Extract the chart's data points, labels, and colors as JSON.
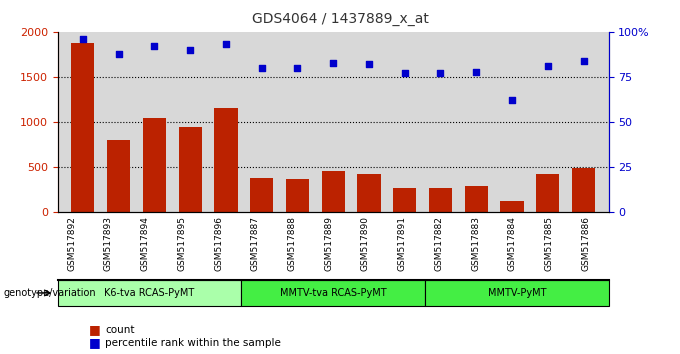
{
  "title": "GDS4064 / 1437889_x_at",
  "categories": [
    "GSM517892",
    "GSM517893",
    "GSM517894",
    "GSM517895",
    "GSM517896",
    "GSM517887",
    "GSM517888",
    "GSM517889",
    "GSM517890",
    "GSM517891",
    "GSM517882",
    "GSM517883",
    "GSM517884",
    "GSM517885",
    "GSM517886"
  ],
  "bar_values": [
    1880,
    800,
    1050,
    950,
    1160,
    380,
    370,
    460,
    420,
    270,
    270,
    290,
    130,
    430,
    490
  ],
  "percentile_values": [
    96,
    88,
    92,
    90,
    93,
    80,
    80,
    83,
    82,
    77,
    77,
    78,
    62,
    81,
    84
  ],
  "bar_color": "#bb2200",
  "dot_color": "#0000cc",
  "ylim_left": [
    0,
    2000
  ],
  "ylim_right": [
    0,
    100
  ],
  "yticks_left": [
    0,
    500,
    1000,
    1500,
    2000
  ],
  "yticks_right": [
    0,
    25,
    50,
    75,
    100
  ],
  "yticklabels_right": [
    "0",
    "25",
    "50",
    "75",
    "100%"
  ],
  "grid_values": [
    500,
    1000,
    1500
  ],
  "groups": [
    {
      "label": "K6-tva RCAS-PyMT",
      "start": 0,
      "end": 5,
      "color": "#aaffaa"
    },
    {
      "label": "MMTV-tva RCAS-PyMT",
      "start": 5,
      "end": 10,
      "color": "#44ee44"
    },
    {
      "label": "MMTV-PyMT",
      "start": 10,
      "end": 15,
      "color": "#44ee44"
    }
  ],
  "group_label": "genotype/variation",
  "legend_items": [
    {
      "label": "count",
      "color": "#bb2200"
    },
    {
      "label": "percentile rank within the sample",
      "color": "#0000cc"
    }
  ],
  "bg_color": "#d8d8d8",
  "title_color": "#333333",
  "left_tick_color": "#cc2200",
  "right_tick_color": "#0000cc"
}
